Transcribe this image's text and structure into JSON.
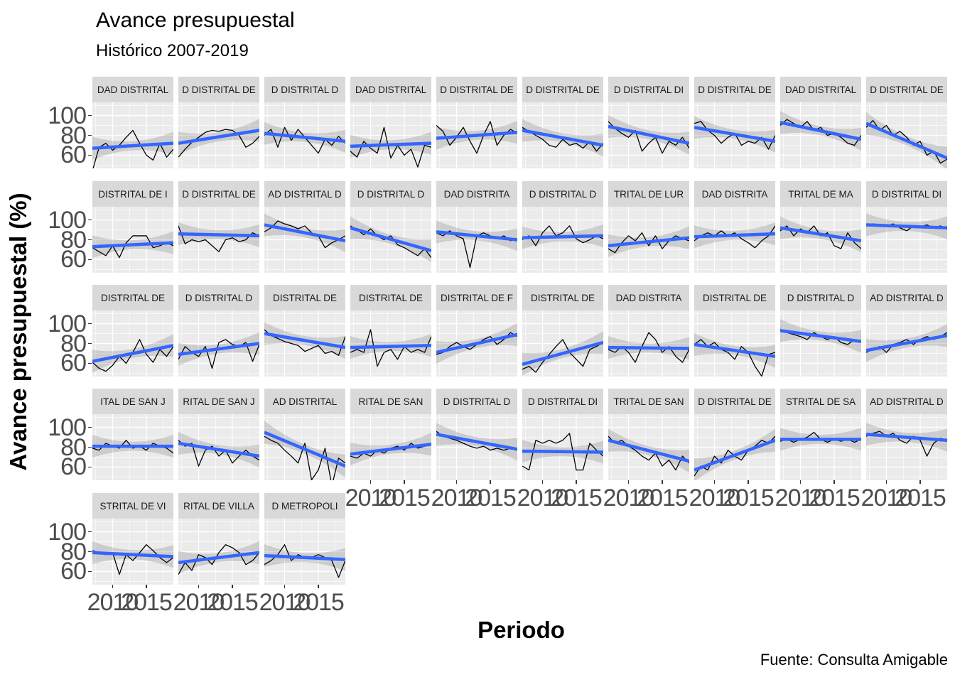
{
  "title": "Avance presupuestal",
  "subtitle": "Histórico 2007-2019",
  "x_axis_title": "Periodo",
  "y_axis_title": "Avance presupuestal (%)",
  "caption": "Fuente: Consulta Amigable",
  "colors": {
    "panel_bg": "#EBEBEB",
    "strip_bg": "#D9D9D9",
    "grid": "#FFFFFF",
    "data_line": "#000000",
    "smooth_line": "#3366FF",
    "ribbon": "#7F7F7F",
    "axis_text": "#4D4D4D",
    "tick_mark": "#333333"
  },
  "axes": {
    "x_ticks": [
      "2010",
      "2015"
    ],
    "y_ticks": [
      "100",
      "80",
      "60"
    ],
    "x_tick_years": [
      2010,
      2015
    ],
    "y_tick_values": [
      100,
      80,
      60
    ],
    "x_domain": [
      2007,
      2019
    ],
    "y_domain": [
      46.7,
      113.3
    ]
  },
  "chart_data": {
    "type": "line",
    "facet_grid_rows": 5,
    "facet_grid_cols": 10,
    "n_facets": 43,
    "x": [
      2007,
      2008,
      2009,
      2010,
      2011,
      2012,
      2013,
      2014,
      2015,
      2016,
      2017,
      2018,
      2019
    ],
    "xlabel": "Periodo",
    "ylabel": "Avance presupuestal (%)",
    "grid": true,
    "smooth": "lm with confidence ribbon",
    "facets": [
      {
        "label": "DAD DISTRITAL",
        "values": [
          44,
          68,
          72,
          65,
          70,
          78,
          85,
          72,
          60,
          55,
          72,
          58,
          66
        ],
        "trend": [
          67,
          72
        ]
      },
      {
        "label": "D DISTRITAL DE",
        "values": [
          58,
          66,
          73,
          78,
          83,
          85,
          84,
          86,
          85,
          80,
          68,
          72,
          79
        ],
        "trend": [
          72,
          85
        ]
      },
      {
        "label": "D DISTRITAL D",
        "values": [
          80,
          86,
          68,
          88,
          75,
          86,
          78,
          70,
          62,
          76,
          70,
          79,
          72
        ],
        "trend": [
          82,
          74
        ]
      },
      {
        "label": "DAD DISTRITAL",
        "values": [
          64,
          58,
          74,
          67,
          62,
          88,
          57,
          70,
          60,
          66,
          48,
          70,
          68
        ],
        "trend": [
          69,
          72
        ]
      },
      {
        "label": "D DISTRITAL DE",
        "values": [
          90,
          84,
          70,
          78,
          88,
          74,
          62,
          80,
          94,
          70,
          80,
          86,
          82
        ],
        "trend": [
          77,
          83
        ]
      },
      {
        "label": "D DISTRITAL DE",
        "values": [
          88,
          84,
          80,
          76,
          70,
          68,
          76,
          70,
          72,
          67,
          74,
          64,
          72
        ],
        "trend": [
          85,
          70
        ]
      },
      {
        "label": "D DISTRITAL DI",
        "values": [
          94,
          87,
          82,
          78,
          85,
          64,
          72,
          78,
          62,
          74,
          70,
          78,
          67
        ],
        "trend": [
          89,
          72
        ]
      },
      {
        "label": "D DISTRITAL DE",
        "values": [
          92,
          94,
          85,
          80,
          72,
          78,
          82,
          70,
          74,
          72,
          78,
          66,
          80
        ],
        "trend": [
          88,
          74
        ]
      },
      {
        "label": "DAD DISTRITAL",
        "values": [
          90,
          96,
          92,
          88,
          94,
          85,
          88,
          80,
          82,
          78,
          72,
          70,
          80
        ],
        "trend": [
          93,
          76
        ]
      },
      {
        "label": "D DISTRITAL DE",
        "values": [
          88,
          95,
          85,
          90,
          80,
          84,
          78,
          70,
          74,
          60,
          64,
          52,
          56
        ],
        "trend": [
          92,
          57
        ]
      },
      {
        "label": "DISTRITAL DE I",
        "values": [
          72,
          68,
          64,
          74,
          62,
          77,
          84,
          84,
          84,
          72,
          74,
          77,
          74
        ],
        "trend": [
          73,
          77
        ]
      },
      {
        "label": "D DISTRITAL DE",
        "values": [
          94,
          76,
          80,
          78,
          80,
          74,
          68,
          80,
          82,
          78,
          80,
          87,
          84
        ],
        "trend": [
          86,
          84
        ]
      },
      {
        "label": "AD DISTRITAL D",
        "values": [
          88,
          92,
          99,
          96,
          94,
          91,
          94,
          87,
          84,
          72,
          77,
          80,
          84
        ],
        "trend": [
          95,
          79
        ]
      },
      {
        "label": "D DISTRITAL D",
        "values": [
          94,
          90,
          85,
          91,
          84,
          80,
          84,
          75,
          72,
          68,
          64,
          71,
          62
        ],
        "trend": [
          92,
          69
        ]
      },
      {
        "label": "DAD DISTRITA",
        "values": [
          87,
          84,
          89,
          84,
          81,
          52,
          84,
          87,
          84,
          81,
          84,
          79,
          81
        ],
        "trend": [
          88,
          80
        ]
      },
      {
        "label": "D DISTRITAL D",
        "values": [
          80,
          84,
          74,
          87,
          94,
          84,
          87,
          94,
          81,
          77,
          80,
          84,
          81
        ],
        "trend": [
          82,
          84
        ]
      },
      {
        "label": "TRITAL DE LUR",
        "values": [
          71,
          67,
          77,
          84,
          79,
          87,
          74,
          84,
          71,
          79,
          84,
          81,
          79
        ],
        "trend": [
          74,
          82
        ]
      },
      {
        "label": "DAD DISTRITA",
        "values": [
          79,
          84,
          87,
          84,
          89,
          84,
          87,
          81,
          77,
          72,
          79,
          84,
          94
        ],
        "trend": [
          83,
          86
        ]
      },
      {
        "label": "TRITAL DE MA",
        "values": [
          89,
          94,
          84,
          91,
          87,
          94,
          84,
          87,
          74,
          71,
          87,
          77,
          71
        ],
        "trend": [
          92,
          79
        ]
      },
      {
        "label": "D DISTRITAL DI",
        "values": [
          95,
          96,
          95,
          94,
          96,
          92,
          89,
          94,
          93,
          95,
          92,
          94,
          91
        ],
        "trend": [
          95,
          92
        ]
      },
      {
        "label": "DISTRITAL DE",
        "values": [
          61,
          55,
          52,
          58,
          67,
          60,
          71,
          84,
          69,
          61,
          74,
          67,
          77
        ],
        "trend": [
          62,
          78
        ]
      },
      {
        "label": "D DISTRITAL D",
        "values": [
          64,
          77,
          71,
          67,
          77,
          55,
          81,
          84,
          79,
          77,
          81,
          62,
          79
        ],
        "trend": [
          69,
          80
        ]
      },
      {
        "label": "DISTRITAL DE",
        "values": [
          94,
          88,
          85,
          82,
          80,
          78,
          72,
          75,
          78,
          70,
          72,
          68,
          87
        ],
        "trend": [
          90,
          76
        ]
      },
      {
        "label": "DISTRITAL DE",
        "values": [
          71,
          74,
          71,
          94,
          57,
          71,
          74,
          64,
          77,
          71,
          74,
          71,
          87
        ],
        "trend": [
          76,
          78
        ]
      },
      {
        "label": "DISTRITAL DE F",
        "values": [
          69,
          71,
          77,
          81,
          77,
          74,
          79,
          84,
          87,
          79,
          84,
          91,
          87
        ],
        "trend": [
          71,
          89
        ]
      },
      {
        "label": "DISTRITAL DE",
        "values": [
          54,
          57,
          51,
          61,
          69,
          77,
          84,
          71,
          64,
          57,
          74,
          77,
          81
        ],
        "trend": [
          59,
          81
        ]
      },
      {
        "label": "DAD DISTRITA",
        "values": [
          74,
          71,
          77,
          71,
          61,
          77,
          91,
          84,
          71,
          77,
          67,
          61,
          74
        ],
        "trend": [
          76,
          75
        ]
      },
      {
        "label": "DISTRITAL DE",
        "values": [
          79,
          84,
          77,
          81,
          74,
          71,
          64,
          77,
          71,
          57,
          47,
          69,
          71
        ],
        "trend": [
          79,
          67
        ]
      },
      {
        "label": "D DISTRITAL D",
        "values": [
          94,
          91,
          89,
          87,
          84,
          91,
          87,
          84,
          87,
          81,
          79,
          84,
          81
        ],
        "trend": [
          93,
          82
        ]
      },
      {
        "label": "AD DISTRITAL D",
        "values": [
          71,
          74,
          77,
          71,
          79,
          81,
          84,
          79,
          84,
          87,
          84,
          87,
          91
        ],
        "trend": [
          73,
          88
        ]
      },
      {
        "label": "ITAL DE SAN J",
        "values": [
          79,
          77,
          84,
          81,
          79,
          87,
          79,
          81,
          77,
          84,
          81,
          79,
          74
        ],
        "trend": [
          81,
          81
        ]
      },
      {
        "label": "RITAL DE SAN J",
        "values": [
          87,
          81,
          84,
          61,
          77,
          81,
          71,
          77,
          64,
          71,
          77,
          71,
          67
        ],
        "trend": [
          84,
          71
        ]
      },
      {
        "label": "AD DISTRITAL",
        "values": [
          91,
          87,
          84,
          77,
          71,
          64,
          84,
          47,
          57,
          79,
          41,
          69,
          64
        ],
        "trend": [
          95,
          61
        ]
      },
      {
        "label": "RITAL DE SAN",
        "values": [
          71,
          69,
          74,
          71,
          77,
          74,
          79,
          81,
          77,
          84,
          79,
          81,
          84
        ],
        "trend": [
          73,
          83
        ]
      },
      {
        "label": "D DISTRITAL D",
        "values": [
          96,
          91,
          89,
          87,
          84,
          81,
          79,
          81,
          77,
          79,
          77,
          79,
          77
        ],
        "trend": [
          93,
          78
        ]
      },
      {
        "label": "D DISTRITAL DI",
        "values": [
          61,
          57,
          87,
          84,
          87,
          84,
          87,
          94,
          57,
          57,
          84,
          77,
          71
        ],
        "trend": [
          76,
          75
        ]
      },
      {
        "label": "TRITAL DE SAN",
        "values": [
          91,
          84,
          87,
          81,
          77,
          71,
          67,
          74,
          61,
          67,
          57,
          71,
          64
        ],
        "trend": [
          87,
          66
        ]
      },
      {
        "label": "D DISTRITAL DE",
        "values": [
          51,
          61,
          57,
          71,
          64,
          77,
          71,
          67,
          77,
          81,
          87,
          84,
          91
        ],
        "trend": [
          57,
          87
        ]
      },
      {
        "label": "STRITAL DE SA",
        "values": [
          86,
          88,
          85,
          88,
          90,
          95,
          88,
          85,
          88,
          86,
          88,
          85,
          88
        ],
        "trend": [
          88,
          88
        ]
      },
      {
        "label": "AD DISTRITAL D",
        "values": [
          91,
          94,
          96,
          91,
          94,
          87,
          84,
          91,
          87,
          71,
          84,
          89,
          87
        ],
        "trend": [
          93,
          87
        ]
      },
      {
        "label": "STRITAL DE VI",
        "values": [
          81,
          79,
          77,
          79,
          57,
          77,
          71,
          79,
          87,
          81,
          74,
          69,
          74
        ],
        "trend": [
          79,
          75
        ]
      },
      {
        "label": "RITAL DE VILLA",
        "values": [
          57,
          69,
          61,
          77,
          74,
          67,
          79,
          87,
          84,
          79,
          67,
          71,
          79
        ],
        "trend": [
          69,
          79
        ]
      },
      {
        "label": "D METROPOLI",
        "values": [
          67,
          71,
          77,
          87,
          71,
          77,
          74,
          74,
          77,
          74,
          71,
          54,
          71
        ],
        "trend": [
          76,
          72
        ]
      }
    ]
  }
}
